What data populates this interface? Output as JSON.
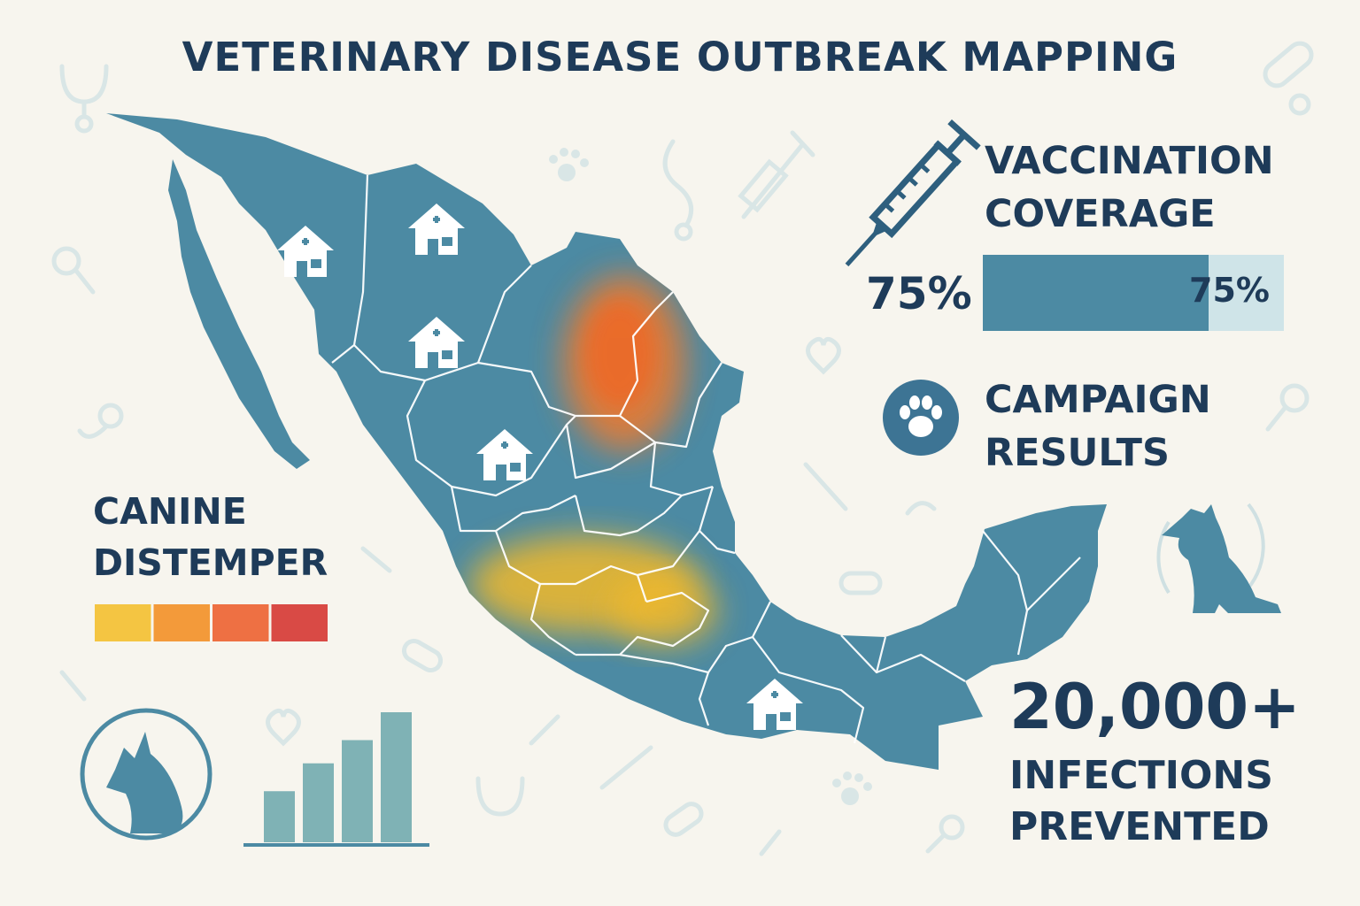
{
  "title": "VETERINARY DISEASE OUTBREAK MAPPING",
  "vaccination": {
    "title_line1": "VACCINATION",
    "title_line2": "COVERAGE",
    "percent_label": "75%",
    "bar_label": "75%",
    "coverage_fraction": 0.75,
    "bar_color": "#4c8aa3",
    "bar_track_color": "#cfe4e8",
    "icon": "syringe-icon"
  },
  "campaign": {
    "title_line1": "CAMPAIGN",
    "title_line2": "RESULTS",
    "icon": "paw-icon"
  },
  "disease": {
    "name_line1": "CANINE",
    "name_line2": "DISTEMPER",
    "severity_scale_colors": [
      "#f4c542",
      "#f39a3a",
      "#ee7043",
      "#d94a45"
    ]
  },
  "stat": {
    "number": "20,000+",
    "label_line1": "INFECTIONS",
    "label_line2": "PREVENTED"
  },
  "map": {
    "region": "Mexico",
    "land_color": "#4c8aa3",
    "hotspot_colors": [
      "#f07a2e",
      "#f2b92a"
    ],
    "clinic_icon": "veterinary-clinic-icon",
    "clinic_count": 5
  },
  "mini_bar_chart": {
    "values": [
      0.33,
      0.51,
      0.66,
      0.84
    ],
    "color": "#7fb2b5"
  },
  "colors": {
    "background": "#f7f5ee",
    "text": "#1e3b59",
    "accent": "#4c8aa3"
  }
}
